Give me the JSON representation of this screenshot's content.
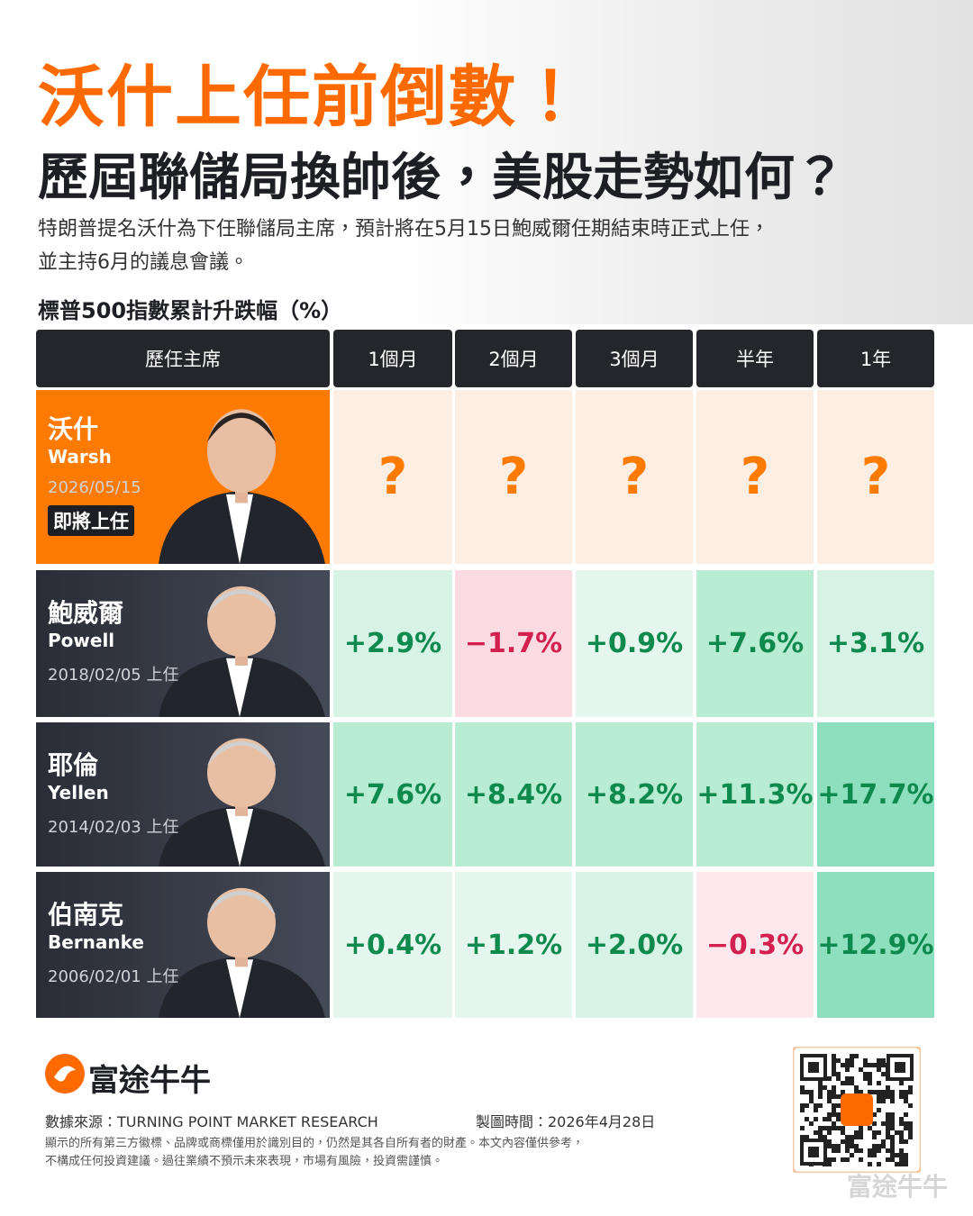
{
  "header": {
    "title": "沃什上任前倒數！",
    "subtitle": "歷屆聯儲局換帥後，美股走勢如何？",
    "description": [
      "特朗普提名沃什為下任聯儲局主席，預計將在5月15日鮑威爾任期結束時正式上任，",
      "並主持6月的議息會議。"
    ]
  },
  "table": {
    "caption": "標普500指數累計升跌幅（%）",
    "columns": [
      "歷任主席",
      "1個月",
      "2個月",
      "3個月",
      "半年",
      "1年"
    ],
    "rows": [
      {
        "name": "沃什",
        "name_en": "Warsh",
        "date": "2026/05/15",
        "badge": "即將上任",
        "cells": [
          "?",
          "?",
          "?",
          "?",
          "?"
        ]
      },
      {
        "name": "鮑威爾",
        "name_en": "Powell",
        "date": "2018/02/05 上任",
        "cells": [
          "+2.9%",
          "−1.7%",
          "+0.9%",
          "+7.6%",
          "+3.1%"
        ]
      },
      {
        "name": "耶倫",
        "name_en": "Yellen",
        "date": "2014/02/03 上任",
        "cells": [
          "+7.6%",
          "+8.4%",
          "+8.2%",
          "+11.3%",
          "+17.7%"
        ]
      },
      {
        "name": "伯南克",
        "name_en": "Bernanke",
        "date": "2006/02/01 上任",
        "cells": [
          "+0.4%",
          "+1.2%",
          "+2.0%",
          "−0.3%",
          "+12.9%"
        ]
      }
    ]
  },
  "footer": {
    "brand": "富途牛牛",
    "source": "數據來源：TURNING POINT MARKET RESEARCH",
    "made": "製圖時間：2026年4月28日",
    "disclaimer": [
      "顯示的所有第三方徽標、品牌或商標僅用於識別目的，仍然是其各自所有者的財產。本文內容僅供參考，",
      "不構成任何投資建議。過往業績不預示未來表現，市場有風險，投資需謹慎。"
    ],
    "watermark": "富途牛牛"
  }
}
